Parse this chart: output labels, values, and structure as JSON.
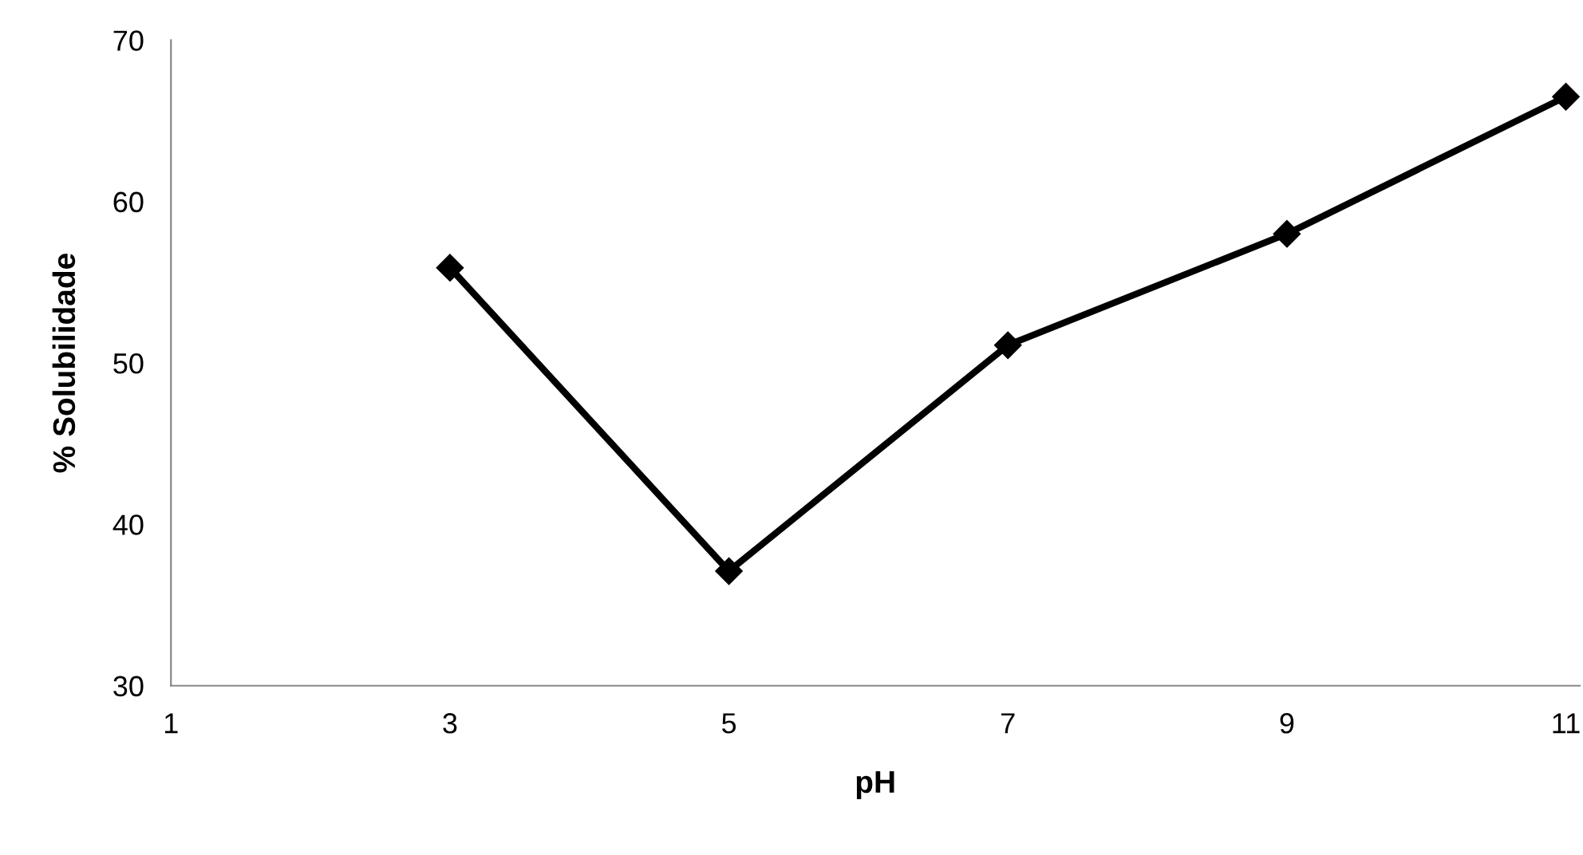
{
  "chart_data": {
    "type": "line",
    "xlabel": "pH",
    "ylabel": "% Solubilidade",
    "x": [
      3,
      5,
      7,
      9,
      11
    ],
    "series": [
      {
        "color": "#000000",
        "values": [
          55.9,
          37.1,
          51.1,
          58.0,
          66.5
        ]
      }
    ],
    "xlim": [
      1,
      11.1
    ],
    "xticks": [
      1,
      3,
      5,
      7,
      9,
      11
    ],
    "ylim": [
      30,
      70
    ],
    "yticks": [
      30,
      40,
      50,
      60,
      70
    ],
    "grid": false,
    "legend": false,
    "marker": "diamond",
    "line_style": "solid"
  }
}
